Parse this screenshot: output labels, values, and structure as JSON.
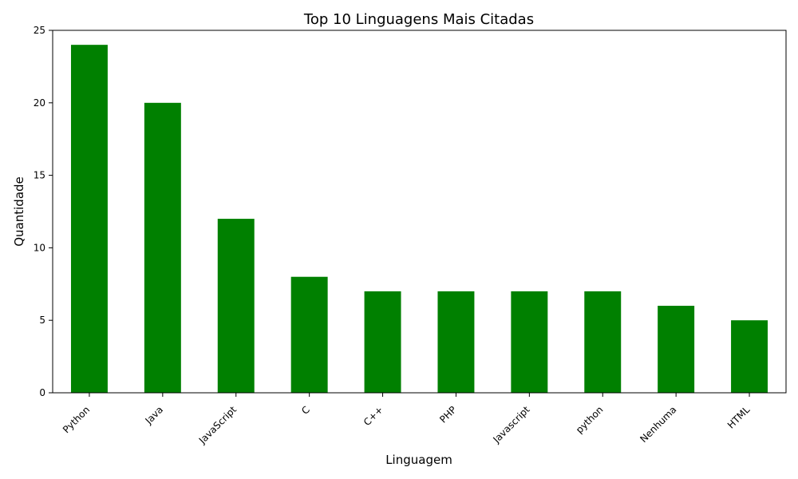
{
  "chart_data": {
    "type": "bar",
    "title": "Top 10 Linguagens Mais Citadas",
    "xlabel": "Linguagem",
    "ylabel": "Quantidade",
    "categories": [
      "Python",
      "Java",
      "JavaScript",
      "C",
      "C++",
      "PHP",
      "Javascript",
      "python",
      "Nenhuma",
      "HTML"
    ],
    "values": [
      24,
      20,
      12,
      8,
      7,
      7,
      7,
      7,
      6,
      5
    ],
    "ylim": [
      0,
      25
    ],
    "yticks": [
      0,
      5,
      10,
      15,
      20,
      25
    ],
    "bar_color": "#008000",
    "grid": false,
    "legend": "none"
  }
}
